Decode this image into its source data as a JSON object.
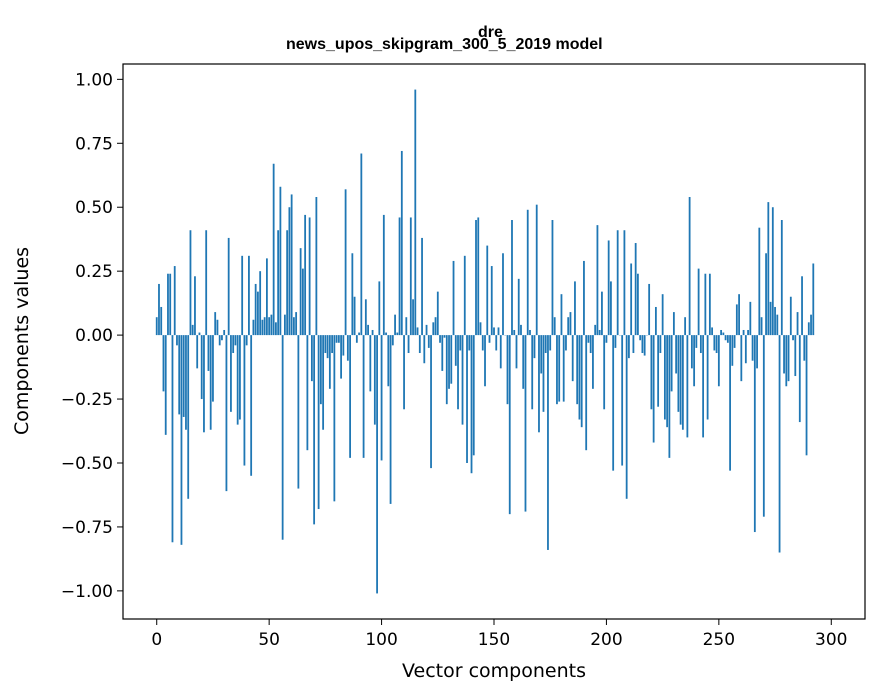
{
  "chart_data": {
    "type": "bar",
    "title": "dre",
    "subtitle": "news_upos_skipgram_300_5_2019 model",
    "xlabel": "Vector components",
    "ylabel": "Components values",
    "xlim": [
      -15,
      315
    ],
    "ylim": [
      -1.11,
      1.06
    ],
    "xticks": [
      0,
      50,
      100,
      150,
      200,
      250,
      300
    ],
    "yticks": [
      -1.0,
      -0.75,
      -0.5,
      -0.25,
      0.0,
      0.25,
      0.5,
      0.75,
      1.0
    ],
    "ytick_labels": [
      "−1.00",
      "−0.75",
      "−0.50",
      "−0.25",
      "0.00",
      "0.25",
      "0.50",
      "0.75",
      "1.00"
    ],
    "xtick_labels": [
      "0",
      "50",
      "100",
      "150",
      "200",
      "250",
      "300"
    ],
    "bar_color": "#1f77b4",
    "values": [
      0.07,
      0.2,
      0.11,
      -0.22,
      -0.39,
      0.24,
      0.24,
      -0.81,
      0.27,
      -0.04,
      -0.31,
      -0.82,
      -0.32,
      -0.37,
      -0.64,
      0.41,
      0.04,
      0.23,
      -0.13,
      0.01,
      -0.25,
      -0.38,
      0.41,
      -0.14,
      -0.37,
      -0.26,
      0.09,
      0.06,
      -0.04,
      -0.02,
      0.02,
      -0.61,
      0.38,
      -0.3,
      -0.07,
      -0.04,
      -0.35,
      -0.33,
      0.31,
      -0.51,
      -0.04,
      0.31,
      -0.55,
      0.06,
      0.2,
      0.17,
      0.25,
      0.06,
      0.07,
      0.3,
      0.07,
      0.08,
      0.67,
      0.05,
      0.41,
      0.58,
      -0.8,
      0.08,
      0.41,
      0.5,
      0.55,
      0.07,
      0.09,
      -0.6,
      0.34,
      0.26,
      0.47,
      -0.45,
      0.46,
      -0.18,
      -0.74,
      0.54,
      -0.68,
      -0.27,
      -0.37,
      -0.07,
      -0.09,
      -0.21,
      -0.07,
      -0.65,
      -0.03,
      -0.03,
      -0.17,
      -0.08,
      0.57,
      -0.1,
      -0.48,
      0.32,
      0.15,
      -0.03,
      0.01,
      0.71,
      -0.48,
      0.14,
      0.04,
      -0.22,
      0.02,
      -0.35,
      -1.01,
      0.21,
      -0.49,
      0.47,
      0.01,
      -0.2,
      -0.66,
      -0.04,
      0.08,
      0.01,
      0.46,
      0.72,
      -0.29,
      0.07,
      -0.07,
      0.46,
      0.14,
      0.96,
      0.03,
      -0.07,
      0.38,
      -0.11,
      0.04,
      -0.05,
      -0.52,
      0.05,
      0.07,
      0.17,
      -0.03,
      -0.14,
      -0.01,
      -0.27,
      -0.21,
      -0.19,
      0.29,
      -0.12,
      -0.29,
      -0.06,
      -0.35,
      0.31,
      -0.5,
      -0.06,
      -0.54,
      -0.47,
      0.45,
      0.46,
      0.05,
      -0.06,
      -0.2,
      0.35,
      -0.03,
      0.27,
      0.03,
      -0.06,
      0.03,
      -0.13,
      0.32,
      0.0,
      -0.27,
      -0.7,
      0.45,
      0.02,
      -0.13,
      0.22,
      0.04,
      -0.21,
      -0.69,
      0.49,
      0.02,
      -0.29,
      -0.09,
      0.51,
      -0.38,
      -0.15,
      -0.3,
      -0.07,
      -0.84,
      -0.06,
      0.45,
      0.07,
      -0.27,
      -0.26,
      0.16,
      -0.26,
      -0.06,
      0.07,
      0.09,
      -0.18,
      0.21,
      -0.27,
      -0.33,
      -0.36,
      0.29,
      -0.45,
      -0.03,
      -0.07,
      -0.21,
      0.04,
      0.43,
      0.02,
      0.17,
      -0.29,
      -0.03,
      0.37,
      0.21,
      -0.53,
      -0.05,
      0.41,
      0.0,
      -0.51,
      0.41,
      -0.64,
      -0.09,
      0.28,
      -0.07,
      0.36,
      0.24,
      -0.02,
      -0.07,
      -0.08,
      0.0,
      0.2,
      -0.29,
      -0.42,
      0.11,
      -0.28,
      -0.07,
      0.16,
      -0.33,
      -0.36,
      -0.48,
      -0.22,
      0.09,
      -0.15,
      -0.3,
      -0.35,
      -0.37,
      0.07,
      -0.4,
      0.54,
      -0.13,
      -0.2,
      -0.05,
      0.26,
      -0.07,
      -0.4,
      0.24,
      -0.33,
      0.24,
      0.03,
      -0.06,
      -0.07,
      -0.2,
      0.02,
      0.01,
      -0.02,
      -0.03,
      -0.53,
      -0.12,
      -0.05,
      0.12,
      0.16,
      -0.18,
      0.02,
      -0.11,
      0.02,
      0.13,
      -0.1,
      -0.77,
      -0.13,
      0.42,
      0.07,
      -0.71,
      0.32,
      0.52,
      0.13,
      0.5,
      0.11,
      0.08,
      -0.85,
      0.45,
      -0.15,
      -0.2,
      -0.18,
      0.15,
      -0.02,
      -0.16,
      0.09,
      -0.34,
      0.23,
      -0.1,
      -0.47,
      0.05,
      0.08,
      0.28
    ]
  }
}
